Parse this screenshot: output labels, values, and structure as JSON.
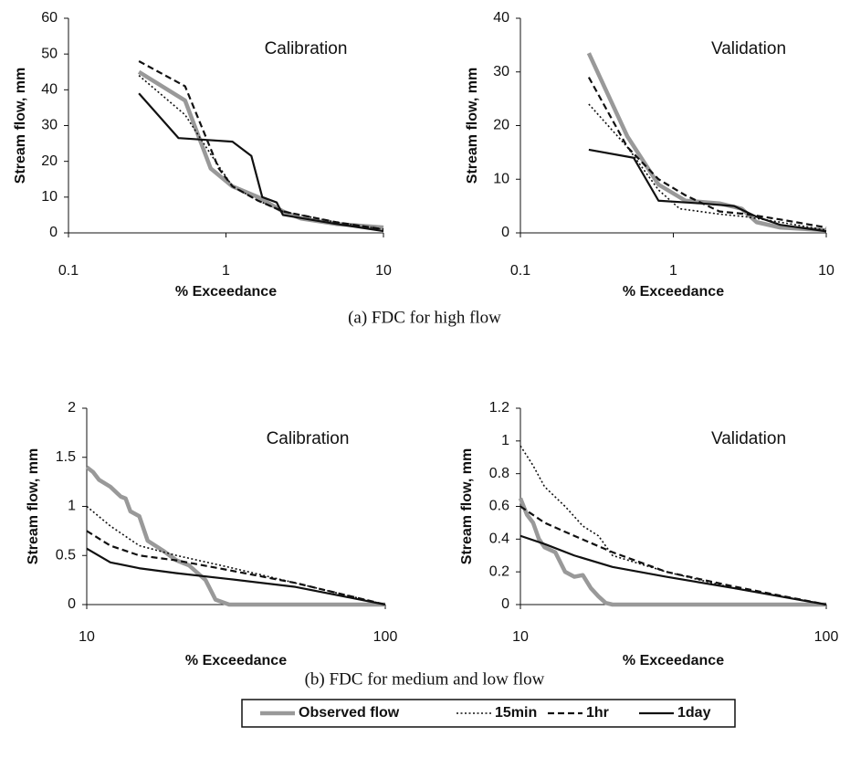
{
  "captions": [
    "(a) FDC for high flow",
    "(b) FDC for medium and low flow"
  ],
  "legend": [
    {
      "name": "Observed flow",
      "color": "#999999",
      "style": "thick"
    },
    {
      "name": "15min",
      "color": "#111111",
      "style": "dotted"
    },
    {
      "name": "1hr",
      "color": "#111111",
      "style": "dashed"
    },
    {
      "name": "1day",
      "color": "#111111",
      "style": "solid"
    }
  ],
  "chart_data": [
    {
      "type": "line",
      "annotation": "Calibration",
      "x_label": "% Exceedance",
      "y_label": "Stream flow, mm",
      "xscale": "log",
      "xlim": [
        0.1,
        10
      ],
      "xticks": [
        0.1,
        1,
        10
      ],
      "ylim": [
        0,
        60
      ],
      "yticks": [
        0,
        10,
        20,
        30,
        40,
        50,
        60
      ],
      "series": [
        {
          "x": [
            0.28,
            0.55,
            0.8,
            1.1,
            1.6,
            2.3,
            3,
            5,
            10
          ],
          "values": [
            45,
            37,
            18,
            13,
            10,
            6,
            4,
            2.5,
            1.5
          ]
        },
        {
          "x": [
            0.28,
            0.55,
            0.8,
            1.1,
            1.6,
            2.3,
            5,
            10
          ],
          "values": [
            44,
            33,
            22,
            13,
            9,
            6,
            3,
            1
          ]
        },
        {
          "x": [
            0.28,
            0.55,
            0.9,
            1.1,
            1.6,
            2.3,
            5,
            10
          ],
          "values": [
            48,
            41,
            18,
            13,
            9,
            6,
            3,
            1
          ]
        },
        {
          "x": [
            0.28,
            0.5,
            0.75,
            1.1,
            1.45,
            1.7,
            2.1,
            2.3,
            5,
            10
          ],
          "values": [
            39,
            26.5,
            26,
            25.5,
            21.5,
            10,
            8.5,
            5,
            2.5,
            0.5
          ]
        }
      ]
    },
    {
      "type": "line",
      "annotation": "Validation",
      "x_label": "% Exceedance",
      "y_label": "Stream flow, mm",
      "xscale": "log",
      "xlim": [
        0.1,
        10
      ],
      "xticks": [
        0.1,
        1,
        10
      ],
      "ylim": [
        0,
        40
      ],
      "yticks": [
        0,
        10,
        20,
        30,
        40
      ],
      "series": [
        {
          "x": [
            0.28,
            0.5,
            0.8,
            1.2,
            2,
            2.8,
            3.5,
            5,
            10
          ],
          "values": [
            33.5,
            18,
            9,
            6,
            5.5,
            4.5,
            2,
            1,
            0.5
          ]
        },
        {
          "x": [
            0.28,
            0.5,
            0.8,
            1.1,
            2,
            3,
            5,
            10
          ],
          "values": [
            24,
            16,
            8,
            4.5,
            3.5,
            3,
            2,
            0.5
          ]
        },
        {
          "x": [
            0.28,
            0.5,
            0.8,
            1.2,
            2,
            3,
            5,
            10
          ],
          "values": [
            29,
            16,
            10,
            7,
            4,
            3.5,
            2.5,
            1
          ]
        },
        {
          "x": [
            0.28,
            0.55,
            0.8,
            1.5,
            2.5,
            3.5,
            5,
            10
          ],
          "values": [
            15.5,
            14,
            6,
            5.5,
            5,
            3,
            1.5,
            0.3
          ]
        }
      ]
    },
    {
      "type": "line",
      "annotation": "Calibration",
      "x_label": "% Exceedance",
      "y_label": "Stream flow, mm",
      "xscale": "log",
      "xlim": [
        10,
        100
      ],
      "xticks": [
        10,
        100
      ],
      "ylim": [
        0,
        2
      ],
      "yticks": [
        0,
        0.5,
        1,
        1.5,
        2
      ],
      "series": [
        {
          "x": [
            10,
            10.5,
            11,
            12,
            13,
            13.5,
            14,
            15,
            16,
            18,
            20,
            22,
            25,
            27,
            30,
            40,
            100
          ],
          "values": [
            1.4,
            1.35,
            1.27,
            1.2,
            1.1,
            1.08,
            0.95,
            0.9,
            0.65,
            0.55,
            0.45,
            0.4,
            0.25,
            0.05,
            0,
            0,
            0
          ]
        },
        {
          "x": [
            10,
            12,
            15,
            20,
            30,
            50,
            100
          ],
          "values": [
            1,
            0.8,
            0.6,
            0.5,
            0.38,
            0.22,
            0
          ]
        },
        {
          "x": [
            10,
            12,
            15,
            20,
            30,
            50,
            100
          ],
          "values": [
            0.75,
            0.6,
            0.5,
            0.45,
            0.35,
            0.22,
            0
          ]
        },
        {
          "x": [
            10,
            12,
            15,
            20,
            30,
            50,
            100
          ],
          "values": [
            0.57,
            0.43,
            0.37,
            0.32,
            0.26,
            0.18,
            0
          ]
        }
      ]
    },
    {
      "type": "line",
      "annotation": "Validation",
      "x_label": "% Exceedance",
      "y_label": "Stream flow, mm",
      "xscale": "log",
      "xlim": [
        10,
        100
      ],
      "xticks": [
        10,
        100
      ],
      "ylim": [
        0,
        1.2
      ],
      "yticks": [
        0,
        0.2,
        0.4,
        0.6,
        0.8,
        1,
        1.2
      ],
      "series": [
        {
          "x": [
            10,
            10.5,
            11,
            11.5,
            12,
            13,
            14,
            15,
            16,
            17,
            18,
            19,
            20,
            100
          ],
          "values": [
            0.65,
            0.55,
            0.5,
            0.4,
            0.35,
            0.32,
            0.2,
            0.17,
            0.18,
            0.1,
            0.05,
            0.01,
            0,
            0
          ]
        },
        {
          "x": [
            10,
            11,
            12,
            14,
            16,
            18,
            20,
            30,
            50,
            100
          ],
          "values": [
            0.97,
            0.85,
            0.72,
            0.6,
            0.48,
            0.42,
            0.3,
            0.2,
            0.1,
            0
          ]
        },
        {
          "x": [
            10,
            12,
            15,
            20,
            30,
            50,
            100
          ],
          "values": [
            0.6,
            0.5,
            0.42,
            0.32,
            0.2,
            0.11,
            0
          ]
        },
        {
          "x": [
            10,
            12,
            15,
            20,
            30,
            50,
            100
          ],
          "values": [
            0.42,
            0.37,
            0.3,
            0.23,
            0.17,
            0.1,
            0
          ]
        }
      ]
    }
  ]
}
